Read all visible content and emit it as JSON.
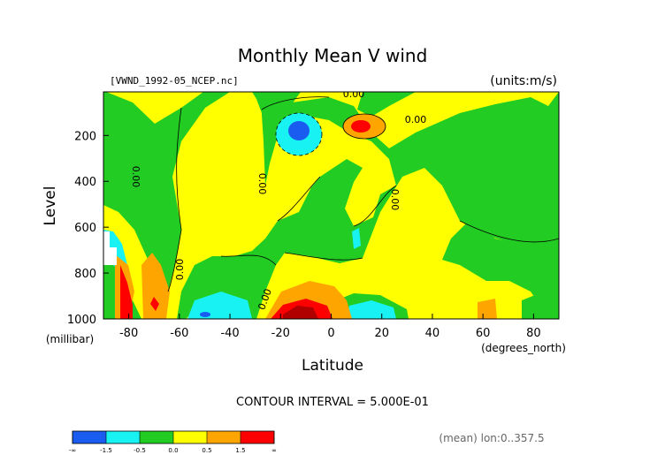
{
  "chart_data": {
    "type": "contour",
    "title": "Monthly Mean V wind",
    "dataset_label": "[VWND_1992-05_NCEP.nc]",
    "units_label": "(units:m/s)",
    "xlabel": "Latitude",
    "x_unit_label": "(degrees_north)",
    "ylabel": "Level",
    "y_unit_label": "(millibar)",
    "xlim": [
      -90,
      90
    ],
    "ylim": [
      1000,
      10
    ],
    "x_ticks": [
      -80,
      -60,
      -40,
      -20,
      0,
      20,
      40,
      60,
      80
    ],
    "x_tick_labels": [
      "-80",
      "-60",
      "-40",
      "-20",
      "0",
      "20",
      "40",
      "60",
      "80"
    ],
    "y_ticks": [
      200,
      400,
      600,
      800,
      1000
    ],
    "y_tick_labels": [
      "200",
      "400",
      "600",
      "800",
      "1000"
    ],
    "contour_interval_text": "CONTOUR INTERVAL = 5.000E-01",
    "contour_labels": [
      "0.00",
      "0.00",
      "0.00",
      "0.00",
      "0.00",
      "0.00",
      "0.00",
      "0.00"
    ],
    "mean_note": "(mean) lon:0..357.5",
    "colorbar": {
      "colors": [
        "#1a5cf0",
        "#19f2f2",
        "#22cc22",
        "#ffff00",
        "#ffa500",
        "#ff0000"
      ],
      "tick_labels": [
        "-∞",
        "-1.5",
        "-0.5",
        "0.0",
        "0.5",
        "1.5",
        "∞"
      ]
    },
    "region_colors": {
      "strong_negative": "#1a5cf0",
      "negative": "#19f2f2",
      "weak_negative": "#22cc22",
      "weak_positive": "#ffff00",
      "positive": "#ffa500",
      "strong_positive": "#ff0000",
      "extreme_positive": "#b00000"
    }
  }
}
